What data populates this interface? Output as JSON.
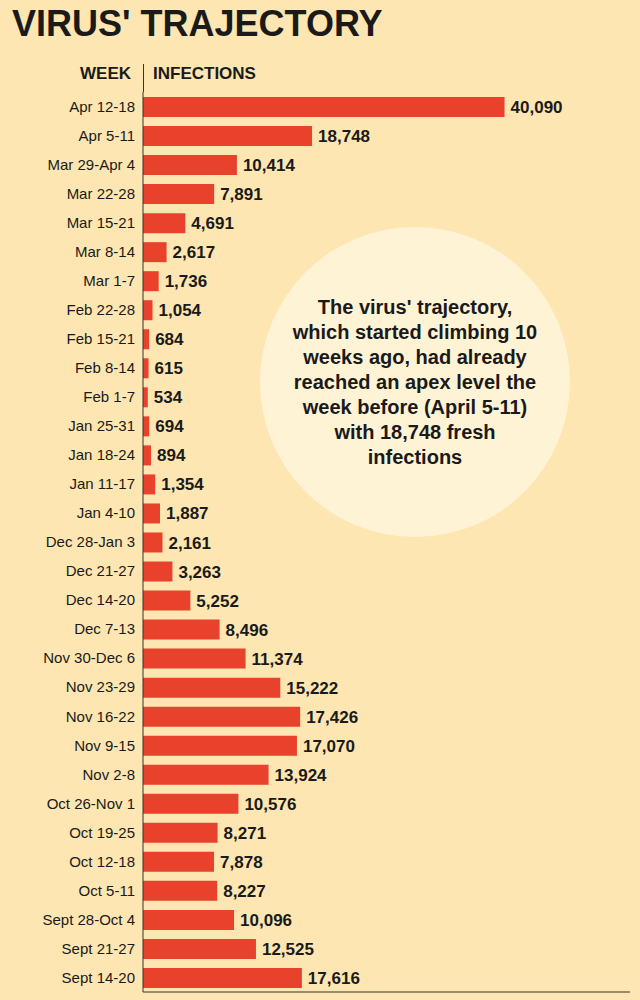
{
  "chart_data": {
    "type": "bar",
    "title": "VIRUS' TRAJECTORY",
    "orientation": "horizontal",
    "y_label": "WEEK",
    "x_label": "INFECTIONS",
    "annotation": "The virus' trajectory, which started climbing 10 weeks ago, had already reached an apex level the week before (April 5-11) with 18,748 fresh infections",
    "categories": [
      "Apr 12-18",
      "Apr 5-11",
      "Mar 29-Apr 4",
      "Mar 22-28",
      "Mar 15-21",
      "Mar 8-14",
      "Mar 1-7",
      "Feb 22-28",
      "Feb 15-21",
      "Feb 8-14",
      "Feb 1-7",
      "Jan 25-31",
      "Jan 18-24",
      "Jan 11-17",
      "Jan 4-10",
      "Dec 28-Jan 3",
      "Dec 21-27",
      "Dec 14-20",
      "Dec 7-13",
      "Nov 30-Dec 6",
      "Nov 23-29",
      "Nov 16-22",
      "Nov 9-15",
      "Nov 2-8",
      "Oct 26-Nov 1",
      "Oct 19-25",
      "Oct 12-18",
      "Oct 5-11",
      "Sept 28-Oct 4",
      "Sept 21-27",
      "Sept 14-20"
    ],
    "values": [
      40090,
      18748,
      10414,
      7891,
      4691,
      2617,
      1736,
      1054,
      684,
      615,
      534,
      694,
      894,
      1354,
      1887,
      2161,
      3263,
      5252,
      8496,
      11374,
      15222,
      17426,
      17070,
      13924,
      10576,
      8271,
      7878,
      8227,
      10096,
      12525,
      17616
    ],
    "value_labels": [
      "40,090",
      "18,748",
      "10,414",
      "7,891",
      "4,691",
      "2,617",
      "1,736",
      "1,054",
      "684",
      "615",
      "534",
      "694",
      "894",
      "1,354",
      "1,887",
      "2,161",
      "3,263",
      "5,252",
      "8,496",
      "11,374",
      "15,222",
      "17,426",
      "17,070",
      "13,924",
      "10,576",
      "8,271",
      "7,878",
      "8,227",
      "10,096",
      "12,525",
      "17,616"
    ],
    "color": "#e8412c",
    "xlim": [
      0,
      54000
    ],
    "data_labels": true,
    "tick_labels": "y"
  }
}
